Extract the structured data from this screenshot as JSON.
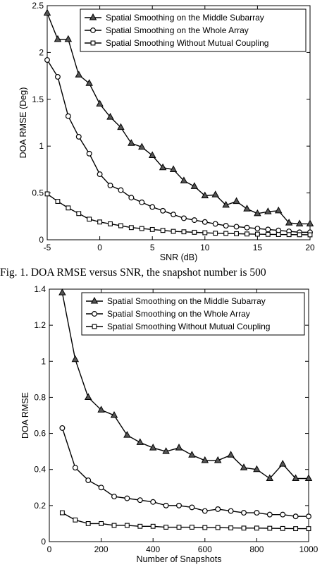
{
  "figure1": {
    "caption": "Fig. 1.  DOA RMSE versus SNR, the snapshot number is 500",
    "chart_data": {
      "type": "line",
      "xlabel": "SNR (dB)",
      "ylabel": "DOA RMSE (Deg)",
      "xlim": [
        -5,
        20
      ],
      "ylim": [
        0,
        2.5
      ],
      "xticks": [
        -5,
        0,
        5,
        10,
        15,
        20
      ],
      "yticks": [
        0,
        0.5,
        1,
        1.5,
        2,
        2.5
      ],
      "grid": false,
      "legend_position": "top-right",
      "x": [
        -5,
        -4,
        -3,
        -2,
        -1,
        0,
        1,
        2,
        3,
        4,
        5,
        6,
        7,
        8,
        9,
        10,
        11,
        12,
        13,
        14,
        15,
        16,
        17,
        18,
        19,
        20
      ],
      "series": [
        {
          "name": "Spatial Smoothing on the Middle Subarray",
          "marker": "triangle",
          "values": [
            2.42,
            2.14,
            2.14,
            1.76,
            1.67,
            1.45,
            1.31,
            1.2,
            1.03,
            0.99,
            0.9,
            0.77,
            0.75,
            0.63,
            0.57,
            0.47,
            0.48,
            0.37,
            0.41,
            0.33,
            0.28,
            0.3,
            0.31,
            0.18,
            0.17,
            0.17
          ]
        },
        {
          "name": "Spatial Smoothing on the Whole Array",
          "marker": "circle",
          "values": [
            1.92,
            1.74,
            1.32,
            1.1,
            0.92,
            0.7,
            0.58,
            0.53,
            0.45,
            0.4,
            0.35,
            0.31,
            0.27,
            0.23,
            0.21,
            0.19,
            0.17,
            0.15,
            0.14,
            0.13,
            0.12,
            0.11,
            0.1,
            0.09,
            0.08,
            0.08
          ]
        },
        {
          "name": "Spatial Smoothing Without Mutual Coupling",
          "marker": "square",
          "values": [
            0.49,
            0.41,
            0.34,
            0.28,
            0.22,
            0.19,
            0.17,
            0.15,
            0.13,
            0.12,
            0.11,
            0.1,
            0.09,
            0.085,
            0.08,
            0.075,
            0.07,
            0.068,
            0.065,
            0.062,
            0.06,
            0.058,
            0.056,
            0.055,
            0.054,
            0.053
          ]
        }
      ]
    }
  },
  "figure2": {
    "chart_data": {
      "type": "line",
      "xlabel": "Number of Snapshots",
      "ylabel": "DOA RMSE",
      "xlim": [
        0,
        1000
      ],
      "ylim": [
        0,
        1.4
      ],
      "xticks": [
        0,
        200,
        400,
        600,
        800,
        1000
      ],
      "yticks": [
        0,
        0.2,
        0.4,
        0.6,
        0.8,
        1,
        1.2,
        1.4
      ],
      "grid": false,
      "legend_position": "top-right",
      "x": [
        50,
        100,
        150,
        200,
        250,
        300,
        350,
        400,
        450,
        500,
        550,
        600,
        650,
        700,
        750,
        800,
        850,
        900,
        950,
        1000
      ],
      "series": [
        {
          "name": "Spatial Smoothing on the Middle Subarray",
          "marker": "triangle",
          "values": [
            1.38,
            1.01,
            0.8,
            0.73,
            0.7,
            0.59,
            0.55,
            0.52,
            0.5,
            0.52,
            0.48,
            0.45,
            0.45,
            0.48,
            0.41,
            0.4,
            0.35,
            0.43,
            0.35,
            0.35
          ]
        },
        {
          "name": "Spatial Smoothing on the Whole Array",
          "marker": "circle",
          "values": [
            0.63,
            0.41,
            0.34,
            0.3,
            0.25,
            0.24,
            0.23,
            0.22,
            0.2,
            0.2,
            0.19,
            0.17,
            0.18,
            0.17,
            0.16,
            0.16,
            0.15,
            0.15,
            0.14,
            0.14
          ]
        },
        {
          "name": "Spatial Smoothing Without Mutual Coupling",
          "marker": "square",
          "values": [
            0.16,
            0.12,
            0.1,
            0.1,
            0.09,
            0.09,
            0.085,
            0.085,
            0.08,
            0.08,
            0.08,
            0.078,
            0.078,
            0.076,
            0.075,
            0.075,
            0.074,
            0.073,
            0.072,
            0.072
          ]
        }
      ]
    }
  }
}
